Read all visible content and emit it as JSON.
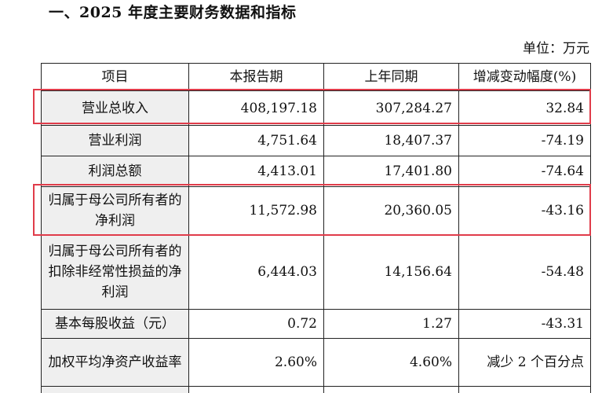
{
  "title": "一、2025 年度主要财务数据和指标",
  "unit": "单位：万元",
  "headers": [
    "项目",
    "本报告期",
    "上年同期",
    "增减变动幅度(%)"
  ],
  "rows": [
    {
      "item": "营业总收入",
      "current": "408,197.18",
      "previous": "307,284.27",
      "change": "32.84",
      "highlighted": true
    },
    {
      "item": "营业利润",
      "current": "4,751.64",
      "previous": "18,407.37",
      "change": "-74.19",
      "highlighted": false
    },
    {
      "item": "利润总额",
      "current": "4,413.01",
      "previous": "17,401.80",
      "change": "-74.64",
      "highlighted": false
    },
    {
      "item": "归属于母公司所有者的净利润",
      "current": "11,572.98",
      "previous": "20,360.05",
      "change": "-43.16",
      "highlighted": true
    },
    {
      "item": "归属于母公司所有者的扣除非经常性损益的净利润",
      "current": "6,444.03",
      "previous": "14,156.64",
      "change": "-54.48",
      "highlighted": false
    },
    {
      "item": "基本每股收益（元）",
      "current": "0.72",
      "previous": "1.27",
      "change": "-43.31",
      "highlighted": false
    },
    {
      "item": "加权平均净资产收益率",
      "current": "2.60%",
      "previous": "4.60%",
      "change": "减少 2 个百分点",
      "highlighted": false
    },
    {
      "item": "",
      "current": "",
      "previous": "",
      "change": "",
      "highlighted": false
    }
  ],
  "highlight_color": "#e03c4a",
  "item_cell_background": "#efefef"
}
